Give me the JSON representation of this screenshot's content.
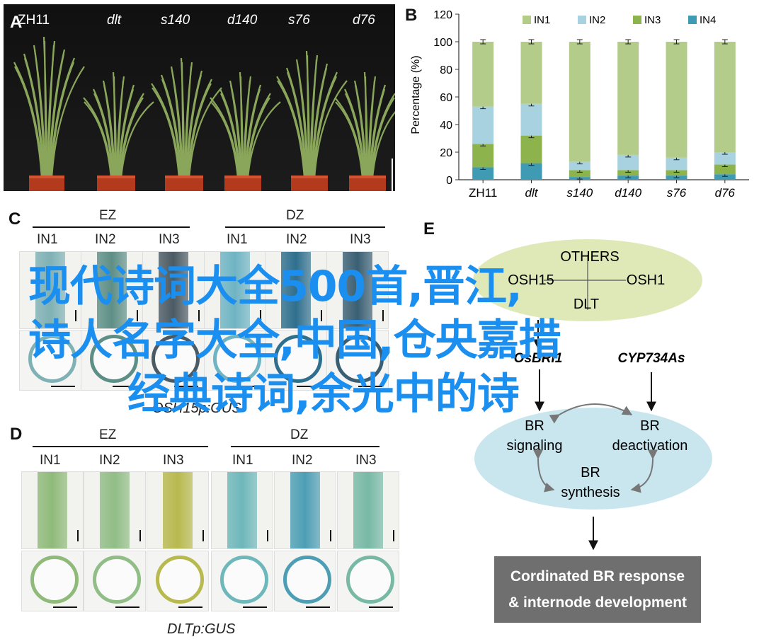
{
  "panels": {
    "a": "A",
    "b": "B",
    "c": "C",
    "d": "D",
    "e": "E"
  },
  "photo_labels": [
    "ZH11",
    "dlt",
    "s140",
    "d140",
    "s76",
    "d76"
  ],
  "chart_data": {
    "type": "bar",
    "stacked": true,
    "categories": [
      "ZH11",
      "dlt",
      "s140",
      "d140",
      "s76",
      "d76"
    ],
    "ylabel": "Percentage (%)",
    "ylim": [
      0,
      120
    ],
    "yticks": [
      0,
      20,
      40,
      60,
      80,
      100,
      120
    ],
    "legend_position": "top",
    "series": [
      {
        "name": "IN4",
        "color": "#3f9ab3",
        "values": [
          9,
          12,
          2,
          3,
          3,
          4
        ]
      },
      {
        "name": "IN3",
        "color": "#8db34c",
        "values": [
          17,
          20,
          5,
          4,
          4,
          7
        ]
      },
      {
        "name": "IN2",
        "color": "#a8d2df",
        "values": [
          27,
          23,
          6,
          11,
          9,
          9
        ]
      },
      {
        "name": "IN1",
        "color": "#b3cc8a",
        "values": [
          47,
          45,
          87,
          82,
          84,
          80
        ]
      }
    ]
  },
  "panelC": {
    "group1": "EZ",
    "group2": "DZ",
    "cols": [
      "IN1",
      "IN2",
      "IN3",
      "IN1",
      "IN2",
      "IN3"
    ],
    "gene": "OSH15p:GUS"
  },
  "panelD": {
    "group1": "EZ",
    "group2": "DZ",
    "cols": [
      "IN1",
      "IN2",
      "IN3",
      "IN1",
      "IN2",
      "IN3"
    ],
    "gene": "DLTp:GUS"
  },
  "panelE": {
    "others": "OTHERS",
    "osh15": "OSH15",
    "osh1": "OSH1",
    "dlt": "DLT",
    "osbri1": "OsBRI1",
    "cyp": "CYP734As",
    "br1": "BR",
    "br1b": "signaling",
    "br2": "BR",
    "br2b": "deactivation",
    "br3": "BR",
    "br3b": "synthesis",
    "out1": "Cordinated BR response",
    "out2": "& internode development"
  },
  "watermark": {
    "line1": "现代诗词大全500首,晋江,",
    "line2": "诗人名字大全,中国,仓央嘉措",
    "line3": "经典诗词,余光中的诗"
  },
  "colors": {
    "gus_blue": "#5fb9c8",
    "leaf_green": "#8fba6a",
    "watermark": "#1b8ff0"
  }
}
